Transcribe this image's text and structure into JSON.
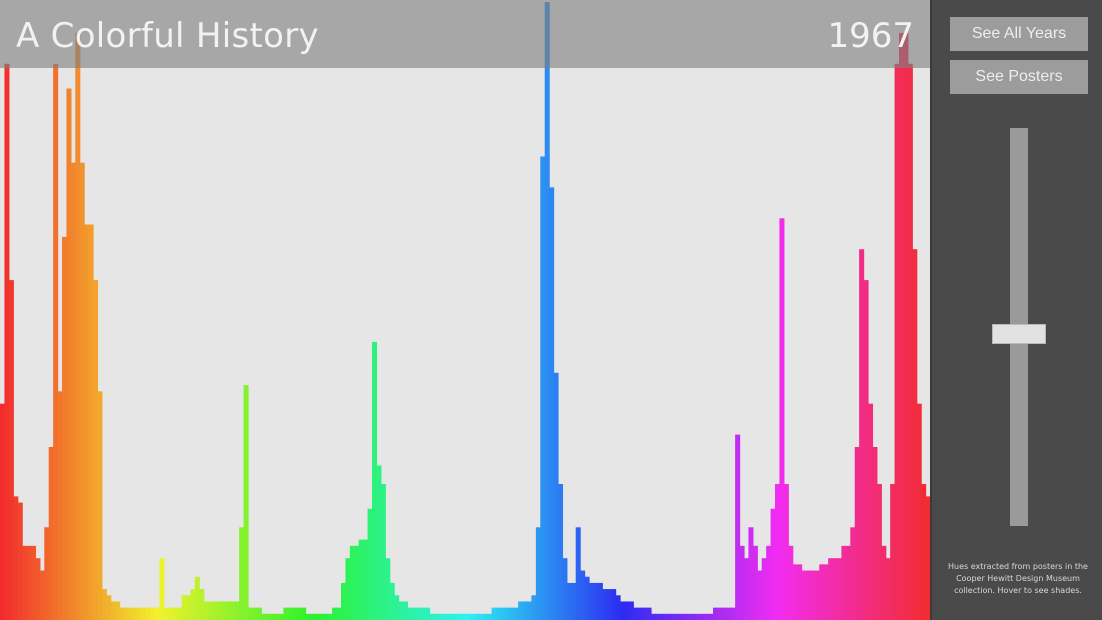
{
  "header": {
    "title": "A Colorful History",
    "year": "1967"
  },
  "sidebar": {
    "see_all_years_label": "See All Years",
    "see_posters_label": "See Posters",
    "caption": "Hues extracted from posters in the Cooper Hewitt Design Museum collection. Hover to see shades.",
    "year_slider_value": "1967"
  },
  "colors": {
    "background": "#e6e6e6",
    "header_overlay": "#808080",
    "sidebar": "#4a4a4a",
    "button": "#9c9c9c"
  },
  "chart_data": {
    "type": "bar",
    "x_label": "",
    "y_label": "",
    "x_axis": "hue (0-360)",
    "grid": false,
    "legend": "none",
    "series": [
      {
        "values": [
          0.35,
          0.9,
          0.55,
          0.2,
          0.19,
          0.12,
          0.12,
          0.12,
          0.1,
          0.08,
          0.15,
          0.28,
          0.9,
          0.37,
          0.62,
          0.86,
          0.74,
          0.95,
          0.74,
          0.64,
          0.64,
          0.55,
          0.37,
          0.05,
          0.04,
          0.03,
          0.03,
          0.02,
          0.02,
          0.02,
          0.02,
          0.02,
          0.02,
          0.02,
          0.02,
          0.02,
          0.1,
          0.02,
          0.02,
          0.02,
          0.02,
          0.04,
          0.04,
          0.05,
          0.07,
          0.05,
          0.03,
          0.03,
          0.03,
          0.03,
          0.03,
          0.03,
          0.03,
          0.03,
          0.15,
          0.38,
          0.02,
          0.02,
          0.02,
          0.01,
          0.01,
          0.01,
          0.01,
          0.01,
          0.02,
          0.02,
          0.02,
          0.02,
          0.02,
          0.01,
          0.01,
          0.01,
          0.01,
          0.01,
          0.01,
          0.02,
          0.02,
          0.06,
          0.1,
          0.12,
          0.12,
          0.13,
          0.13,
          0.18,
          0.45,
          0.25,
          0.22,
          0.1,
          0.06,
          0.04,
          0.03,
          0.03,
          0.02,
          0.02,
          0.02,
          0.02,
          0.02,
          0.01,
          0.01,
          0.01,
          0.01,
          0.01,
          0.01,
          0.01,
          0.01,
          0.01,
          0.01,
          0.01,
          0.01,
          0.01,
          0.01,
          0.02,
          0.02,
          0.02,
          0.02,
          0.02,
          0.02,
          0.03,
          0.03,
          0.03,
          0.04,
          0.15,
          0.75,
          1.0,
          0.7,
          0.4,
          0.22,
          0.1,
          0.06,
          0.06,
          0.15,
          0.08,
          0.07,
          0.06,
          0.06,
          0.06,
          0.05,
          0.05,
          0.05,
          0.04,
          0.03,
          0.03,
          0.03,
          0.02,
          0.02,
          0.02,
          0.02,
          0.01,
          0.01,
          0.01,
          0.01,
          0.01,
          0.01,
          0.01,
          0.01,
          0.01,
          0.01,
          0.01,
          0.01,
          0.01,
          0.01,
          0.02,
          0.02,
          0.02,
          0.02,
          0.02,
          0.3,
          0.12,
          0.1,
          0.15,
          0.12,
          0.08,
          0.1,
          0.12,
          0.18,
          0.22,
          0.65,
          0.22,
          0.12,
          0.09,
          0.09,
          0.08,
          0.08,
          0.08,
          0.08,
          0.09,
          0.09,
          0.1,
          0.1,
          0.1,
          0.12,
          0.12,
          0.15,
          0.28,
          0.6,
          0.55,
          0.35,
          0.28,
          0.22,
          0.12,
          0.1,
          0.22,
          0.9,
          0.95,
          0.95,
          0.9,
          0.6,
          0.35,
          0.22,
          0.2
        ]
      }
    ]
  }
}
